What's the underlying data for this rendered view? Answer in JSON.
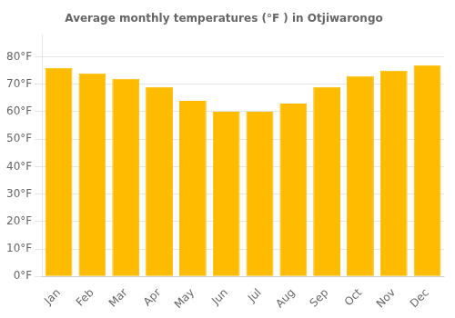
{
  "chart_data": {
    "type": "bar",
    "title": "Average monthly temperatures (°F ) in Otjiwarongo",
    "categories": [
      "Jan",
      "Feb",
      "Mar",
      "Apr",
      "May",
      "Jun",
      "Jul",
      "Aug",
      "Sep",
      "Oct",
      "Nov",
      "Dec"
    ],
    "values": [
      76,
      74,
      72,
      69,
      64,
      60,
      60,
      63,
      69,
      73,
      75,
      77
    ],
    "color": "#FFBB00",
    "ylim": [
      0,
      88
    ],
    "yticks": [
      {
        "value": 0,
        "label": "0°F"
      },
      {
        "value": 10,
        "label": "10°F"
      },
      {
        "value": 20,
        "label": "20°F"
      },
      {
        "value": 30,
        "label": "30°F"
      },
      {
        "value": 40,
        "label": "40°F"
      },
      {
        "value": 50,
        "label": "50°F"
      },
      {
        "value": 60,
        "label": "60°F"
      },
      {
        "value": 70,
        "label": "70°F"
      },
      {
        "value": 80,
        "label": "80°F"
      }
    ],
    "grid": true
  }
}
